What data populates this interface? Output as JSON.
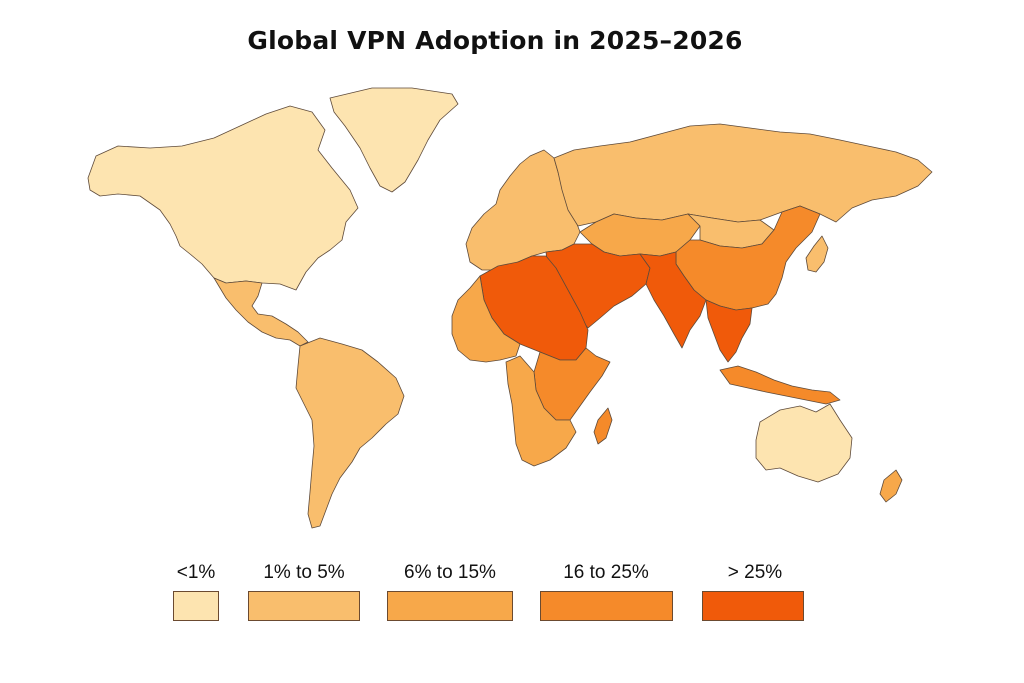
{
  "title": "Global VPN Adoption in 2025–2026",
  "legend": [
    {
      "label": "<1%",
      "color": "#fde4b0"
    },
    {
      "label": "1% to 5%",
      "color": "#f9be6d"
    },
    {
      "label": "6% to 15%",
      "color": "#f7a84a"
    },
    {
      "label": "16  to 25%",
      "color": "#f58a2a"
    },
    {
      "label": "> 25%",
      "color": "#f05a0a"
    }
  ],
  "regions": [
    {
      "name": "greenland",
      "class": 0
    },
    {
      "name": "north-america",
      "class": 0
    },
    {
      "name": "mexico-central-america",
      "class": 1
    },
    {
      "name": "south-america",
      "class": 1
    },
    {
      "name": "europe",
      "class": 1
    },
    {
      "name": "russia",
      "class": 1
    },
    {
      "name": "central-asia",
      "class": 2
    },
    {
      "name": "middle-east",
      "class": 4
    },
    {
      "name": "north-africa",
      "class": 4
    },
    {
      "name": "west-africa",
      "class": 2
    },
    {
      "name": "east-africa",
      "class": 3
    },
    {
      "name": "southern-africa",
      "class": 2
    },
    {
      "name": "madagascar",
      "class": 3
    },
    {
      "name": "south-asia",
      "class": 4
    },
    {
      "name": "china",
      "class": 3
    },
    {
      "name": "mongolia",
      "class": 1
    },
    {
      "name": "southeast-asia",
      "class": 4
    },
    {
      "name": "indonesia",
      "class": 3
    },
    {
      "name": "japan",
      "class": 1
    },
    {
      "name": "australia",
      "class": 0
    },
    {
      "name": "new-zealand",
      "class": 2
    }
  ]
}
